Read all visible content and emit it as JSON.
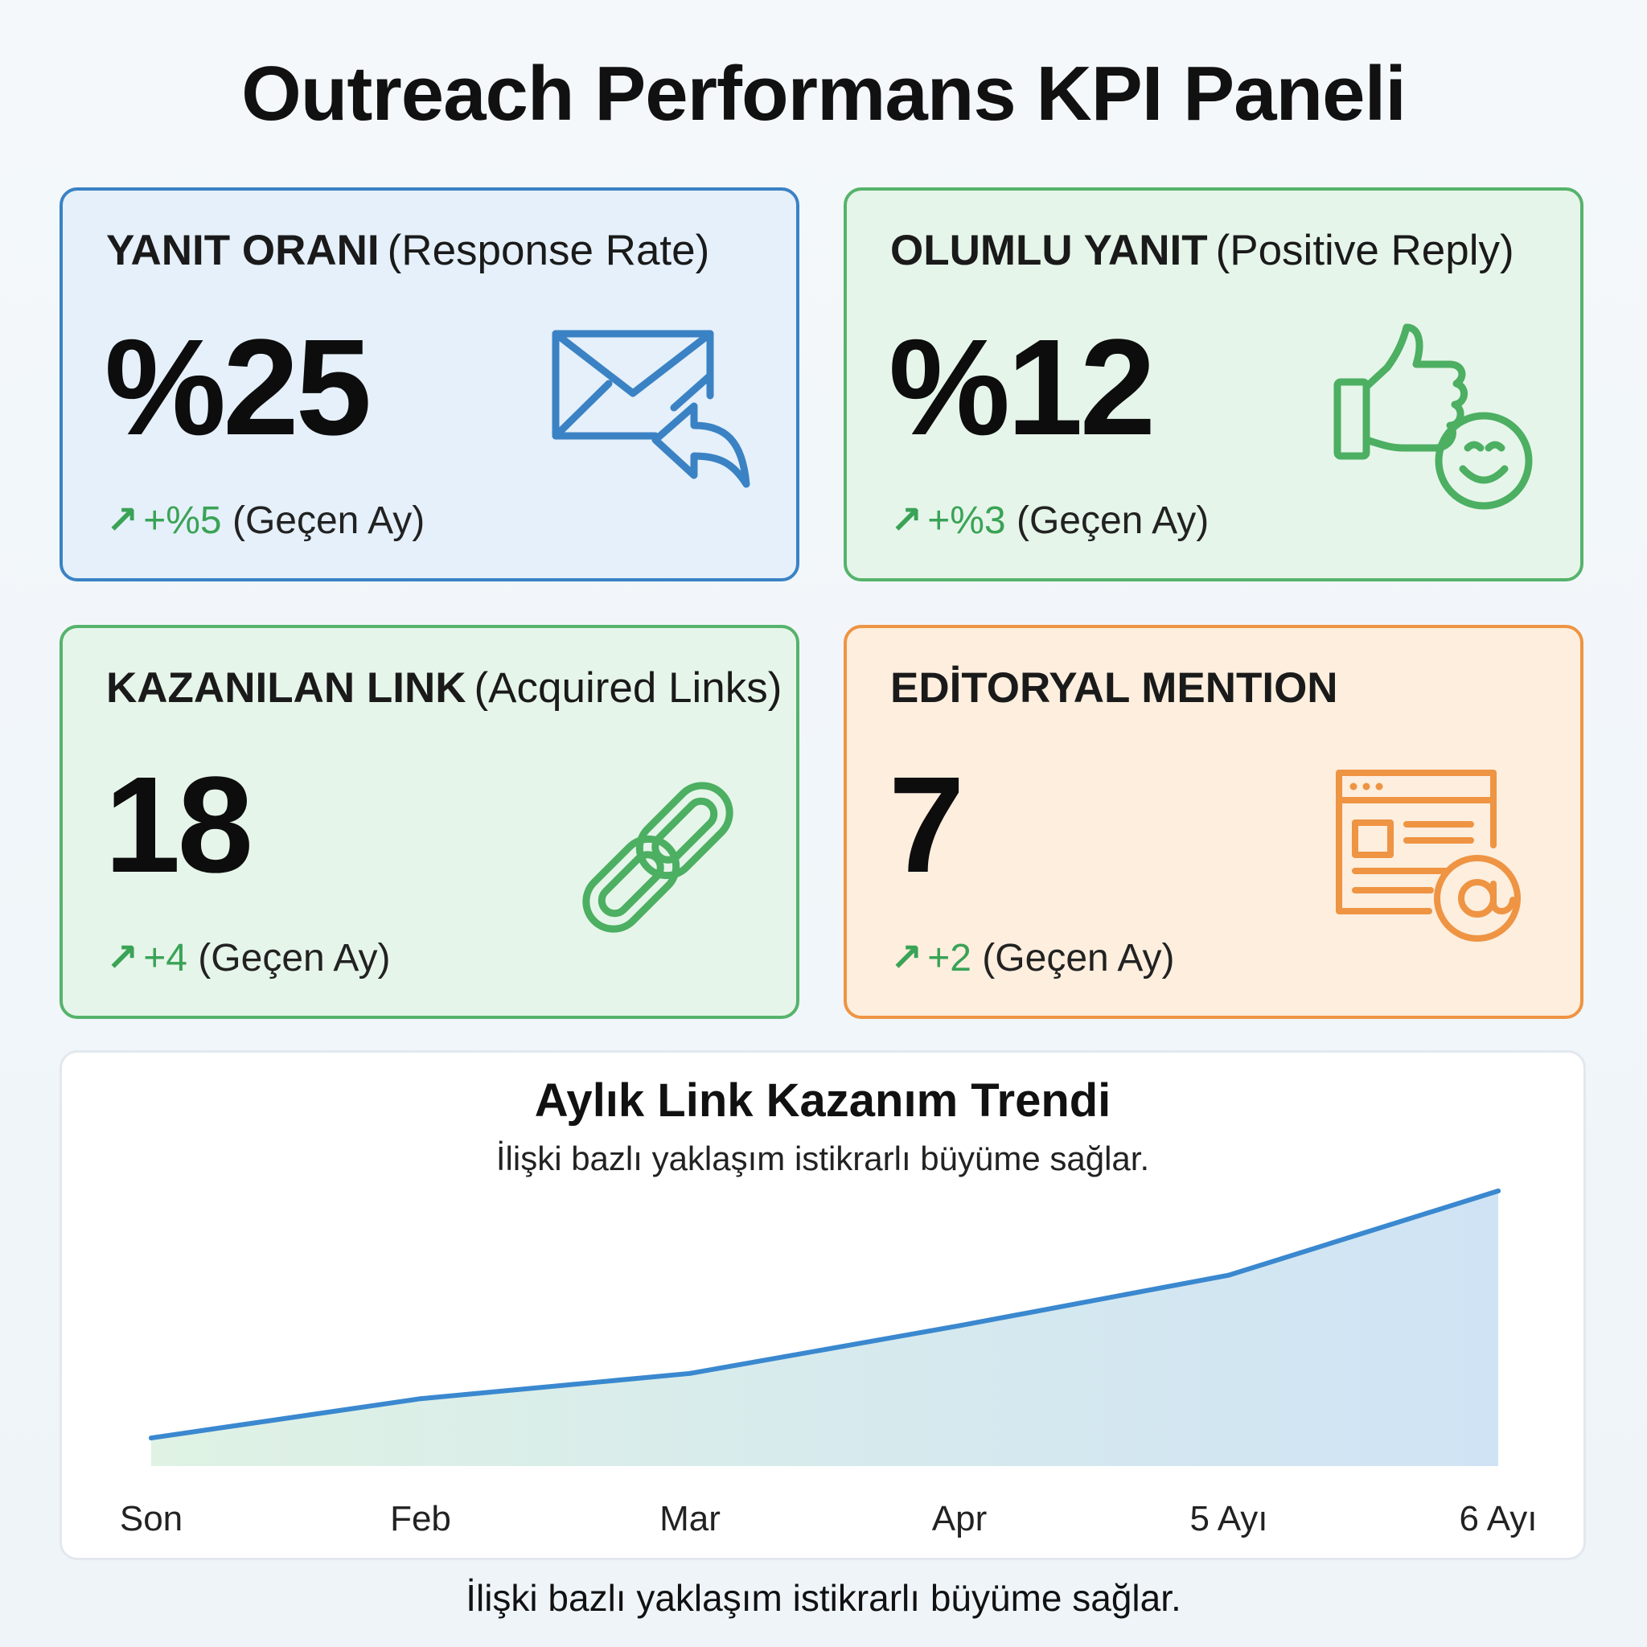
{
  "page": {
    "title": "Outreach Performans KPI Paneli"
  },
  "cards": [
    {
      "title": "YANIT ORANI",
      "subtitle": "(Response Rate)",
      "value": "%25",
      "arrow": "↗",
      "change": "+%5",
      "period": "(Geçen Ay)",
      "icon": "mail-reply-icon",
      "color": "#3a82c4"
    },
    {
      "title": "OLUMLU YANIT",
      "subtitle": "(Positive Reply)",
      "value": "%12",
      "arrow": "↗",
      "change": "+%3",
      "period": "(Geçen Ay)",
      "icon": "thumbs-up-smile-icon",
      "color": "#56b36b"
    },
    {
      "title": "KAZANILAN LINK",
      "subtitle": "(Acquired Links)",
      "value": "18",
      "arrow": "↗",
      "change": "+4",
      "period": "(Geçen Ay)",
      "icon": "chain-link-icon",
      "color": "#56b36b"
    },
    {
      "title": "EDİTORYAL MENTION",
      "subtitle": "",
      "value": "7",
      "arrow": "↗",
      "change": "+2",
      "period": "(Geçen Ay)",
      "icon": "webpage-at-icon",
      "color": "#ee9443"
    }
  ],
  "chart_data": {
    "type": "area",
    "title": "Aylık Link Kazanım Trendi",
    "subtitle": "İlişki bazlı yaklaşım istikrarlı büyüme sağlar.",
    "categories": [
      "Son",
      "Feb",
      "Mar",
      "Apr",
      "5 Ayı",
      "6 Ayı"
    ],
    "series": [
      {
        "values": [
          1.0,
          2.4,
          3.3,
          5.0,
          6.8,
          9.8
        ]
      }
    ],
    "ylim": [
      0,
      11
    ],
    "grid": false,
    "line_color": "#3a88cf",
    "fill_colors": [
      "#dff2e4",
      "#cfe3f5"
    ]
  },
  "footer": {
    "note": "İlişki bazlı yaklaşım istikrarlı büyüme sağlar."
  }
}
